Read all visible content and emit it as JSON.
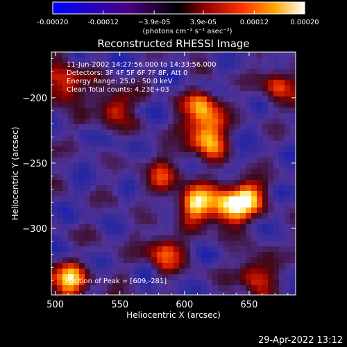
{
  "chart_data": {
    "type": "heatmap",
    "title": "Reconstructed RHESSI Image",
    "xlabel": "Heliocentric X (arcsec)",
    "ylabel": "Heliocentric Y (arcsec)",
    "xlim": [
      497,
      686
    ],
    "ylim": [
      -351,
      -165
    ],
    "x_ticks": [
      500,
      550,
      600,
      650
    ],
    "x_tick_labels": [
      "500",
      "550",
      "600",
      "650"
    ],
    "y_ticks": [
      -200,
      -250,
      -300
    ],
    "y_tick_labels": [
      "−200",
      "−250",
      "−300"
    ],
    "colorbar": {
      "range": [
        -0.0002,
        0.0002
      ],
      "ticks": [
        -0.0002,
        -0.00012,
        -3.9e-05,
        3.9e-05,
        0.00012,
        0.0002
      ],
      "tick_labels": [
        "-0.00020",
        "-0.00012",
        "−3.9e-05",
        "3.9e-05",
        "0.00012",
        "0.00020"
      ],
      "unit_label": "(photons cm⁻² s⁻¹ asec⁻²)",
      "colors": [
        "#0000ff",
        "#4b0082",
        "#000000",
        "#ff0000",
        "#ffa500",
        "#ffffff"
      ]
    },
    "annotations": [
      "11-Jun-2002 14:27:56.000 to 14:33:56.000",
      "Detectors: 3F 4F 5F 6F 7F 8F, Att 0",
      "Energy Range: 25.0 - 50.0 keV",
      "Clean     Total counts: 4.23E+03"
    ],
    "peak_label": "Position of Peak = [609,-281]",
    "peak": [
      609,
      -281
    ],
    "bright_regions": [
      {
        "x": 614,
        "y": -209,
        "value": 0.00018
      },
      {
        "x": 618,
        "y": -231,
        "value": 0.0002
      },
      {
        "x": 633,
        "y": -285,
        "value": 0.00019
      },
      {
        "x": 648,
        "y": -276,
        "value": 0.00017
      },
      {
        "x": 608,
        "y": -281,
        "value": 0.0002
      },
      {
        "x": 546,
        "y": -206,
        "value": 0.00014
      },
      {
        "x": 508,
        "y": -190,
        "value": 0.00016
      },
      {
        "x": 512,
        "y": -340,
        "value": 0.00018
      },
      {
        "x": 585,
        "y": -318,
        "value": 0.00015
      },
      {
        "x": 655,
        "y": -335,
        "value": 0.00013
      },
      {
        "x": 672,
        "y": -190,
        "value": 0.00012
      },
      {
        "x": 583,
        "y": -258,
        "value": 0.00011
      }
    ],
    "grid": false
  },
  "footer": {
    "date": "29-Apr-2022 13:12"
  }
}
